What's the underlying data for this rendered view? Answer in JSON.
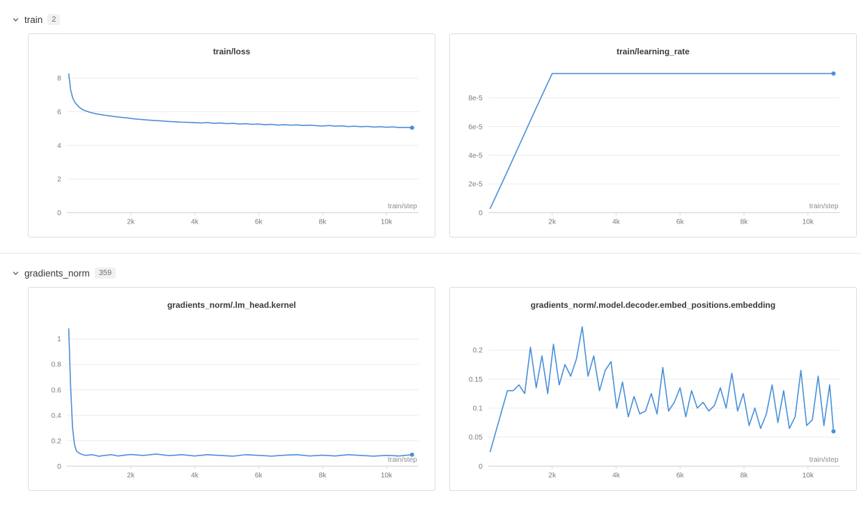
{
  "theme": {
    "line_color": "#4a90d9",
    "grid_color": "#ececec",
    "axis_color": "#d6d6d6",
    "tick_text_color": "#7a7a7a",
    "axis_label_color": "#8c8c8c"
  },
  "sections": [
    {
      "label": "train",
      "count": "2"
    },
    {
      "label": "gradients_norm",
      "count": "359"
    }
  ],
  "chart_data": [
    {
      "type": "line",
      "title": "train/loss",
      "xlabel": "train/step",
      "ylabel": "",
      "legend": "none",
      "grid": true,
      "end_marker": true,
      "xlim": [
        0,
        11000
      ],
      "ylim": [
        0,
        8.7
      ],
      "xticks": [
        2000,
        4000,
        6000,
        8000,
        10000
      ],
      "xtick_labels": [
        "2k",
        "4k",
        "6k",
        "8k",
        "10k"
      ],
      "yticks": [
        0,
        2,
        4,
        6,
        8
      ],
      "ytick_labels": [
        "0",
        "2",
        "4",
        "6",
        "8"
      ],
      "x": [
        60,
        120,
        180,
        240,
        300,
        400,
        500,
        600,
        700,
        800,
        900,
        1000,
        1100,
        1200,
        1300,
        1400,
        1500,
        1600,
        1700,
        1800,
        1900,
        2000,
        2200,
        2400,
        2600,
        2800,
        3000,
        3200,
        3400,
        3600,
        3800,
        4000,
        4200,
        4400,
        4600,
        4800,
        5000,
        5200,
        5400,
        5600,
        5800,
        6000,
        6200,
        6400,
        6600,
        6800,
        7000,
        7200,
        7400,
        7600,
        7800,
        8000,
        8200,
        8400,
        8600,
        8800,
        9000,
        9200,
        9400,
        9600,
        9800,
        10000,
        10200,
        10400,
        10600,
        10800
      ],
      "y": [
        8.25,
        7.3,
        6.85,
        6.6,
        6.45,
        6.25,
        6.12,
        6.05,
        5.98,
        5.93,
        5.88,
        5.85,
        5.82,
        5.79,
        5.76,
        5.74,
        5.71,
        5.69,
        5.67,
        5.65,
        5.63,
        5.6,
        5.56,
        5.53,
        5.5,
        5.47,
        5.45,
        5.42,
        5.4,
        5.38,
        5.37,
        5.35,
        5.33,
        5.36,
        5.31,
        5.33,
        5.29,
        5.31,
        5.27,
        5.29,
        5.25,
        5.27,
        5.23,
        5.25,
        5.21,
        5.23,
        5.2,
        5.22,
        5.18,
        5.2,
        5.17,
        5.15,
        5.18,
        5.14,
        5.16,
        5.12,
        5.14,
        5.11,
        5.13,
        5.09,
        5.11,
        5.08,
        5.1,
        5.06,
        5.07,
        5.05
      ]
    },
    {
      "type": "line",
      "title": "train/learning_rate",
      "xlabel": "train/step",
      "ylabel": "",
      "legend": "none",
      "grid": true,
      "end_marker": true,
      "xlim": [
        0,
        11000
      ],
      "ylim": [
        0,
        0.000102
      ],
      "xticks": [
        2000,
        4000,
        6000,
        8000,
        10000
      ],
      "xtick_labels": [
        "2k",
        "4k",
        "6k",
        "8k",
        "10k"
      ],
      "yticks": [
        0,
        2e-05,
        4e-05,
        6e-05,
        8e-05
      ],
      "ytick_labels": [
        "0",
        "2e-5",
        "4e-5",
        "6e-5",
        "8e-5"
      ],
      "x": [
        60,
        500,
        1000,
        1500,
        2000,
        3000,
        4000,
        5000,
        6000,
        7000,
        8000,
        9000,
        10000,
        10800
      ],
      "y": [
        2.9e-06,
        2.4e-05,
        4.85e-05,
        7.3e-05,
        9.7e-05,
        9.7e-05,
        9.7e-05,
        9.7e-05,
        9.7e-05,
        9.7e-05,
        9.7e-05,
        9.7e-05,
        9.7e-05,
        9.7e-05
      ]
    },
    {
      "type": "line",
      "title": "gradients_norm/.lm_head.kernel",
      "xlabel": "train/step",
      "ylabel": "",
      "legend": "none",
      "grid": true,
      "end_marker": true,
      "xlim": [
        0,
        11000
      ],
      "ylim": [
        0,
        1.15
      ],
      "xticks": [
        2000,
        4000,
        6000,
        8000,
        10000
      ],
      "xtick_labels": [
        "2k",
        "4k",
        "6k",
        "8k",
        "10k"
      ],
      "yticks": [
        0,
        0.2,
        0.4,
        0.6,
        0.8,
        1
      ],
      "ytick_labels": [
        "0",
        "0.2",
        "0.4",
        "0.6",
        "0.8",
        "1"
      ],
      "x": [
        60,
        120,
        180,
        240,
        300,
        400,
        500,
        600,
        800,
        1000,
        1200,
        1400,
        1600,
        1800,
        2000,
        2400,
        2800,
        3200,
        3600,
        4000,
        4400,
        4800,
        5200,
        5600,
        6000,
        6400,
        6800,
        7200,
        7600,
        8000,
        8400,
        8800,
        9200,
        9600,
        10000,
        10400,
        10800
      ],
      "y": [
        1.08,
        0.62,
        0.3,
        0.17,
        0.12,
        0.1,
        0.09,
        0.085,
        0.09,
        0.078,
        0.085,
        0.09,
        0.08,
        0.086,
        0.092,
        0.084,
        0.095,
        0.083,
        0.09,
        0.08,
        0.09,
        0.084,
        0.079,
        0.09,
        0.085,
        0.079,
        0.086,
        0.09,
        0.08,
        0.086,
        0.08,
        0.09,
        0.084,
        0.079,
        0.085,
        0.08,
        0.09
      ]
    },
    {
      "type": "line",
      "title": "gradients_norm/.model.decoder.embed_positions.embedding",
      "xlabel": "train/step",
      "ylabel": "",
      "legend": "none",
      "grid": true,
      "end_marker": true,
      "xlim": [
        0,
        11000
      ],
      "ylim": [
        0,
        0.252
      ],
      "xticks": [
        2000,
        4000,
        6000,
        8000,
        10000
      ],
      "xtick_labels": [
        "2k",
        "4k",
        "6k",
        "8k",
        "10k"
      ],
      "yticks": [
        0,
        0.05,
        0.1,
        0.15,
        0.2
      ],
      "ytick_labels": [
        "0",
        "0.05",
        "0.1",
        "0.15",
        "0.2"
      ],
      "x": [
        60,
        240,
        420,
        600,
        780,
        960,
        1140,
        1320,
        1500,
        1680,
        1860,
        2040,
        2220,
        2400,
        2580,
        2760,
        2940,
        3120,
        3300,
        3480,
        3660,
        3840,
        4020,
        4200,
        4380,
        4560,
        4740,
        4920,
        5100,
        5280,
        5460,
        5640,
        5820,
        6000,
        6180,
        6360,
        6540,
        6720,
        6900,
        7080,
        7260,
        7440,
        7620,
        7800,
        7980,
        8160,
        8340,
        8520,
        8700,
        8880,
        9060,
        9240,
        9420,
        9600,
        9780,
        9960,
        10140,
        10320,
        10500,
        10680,
        10800
      ],
      "y": [
        0.025,
        0.06,
        0.095,
        0.13,
        0.13,
        0.14,
        0.125,
        0.205,
        0.135,
        0.19,
        0.125,
        0.21,
        0.14,
        0.175,
        0.155,
        0.185,
        0.24,
        0.155,
        0.19,
        0.13,
        0.165,
        0.18,
        0.1,
        0.145,
        0.085,
        0.12,
        0.09,
        0.095,
        0.125,
        0.09,
        0.17,
        0.095,
        0.11,
        0.135,
        0.085,
        0.13,
        0.1,
        0.11,
        0.095,
        0.105,
        0.135,
        0.1,
        0.16,
        0.095,
        0.125,
        0.07,
        0.1,
        0.065,
        0.09,
        0.14,
        0.075,
        0.13,
        0.065,
        0.085,
        0.165,
        0.07,
        0.08,
        0.155,
        0.07,
        0.14,
        0.06
      ]
    }
  ]
}
